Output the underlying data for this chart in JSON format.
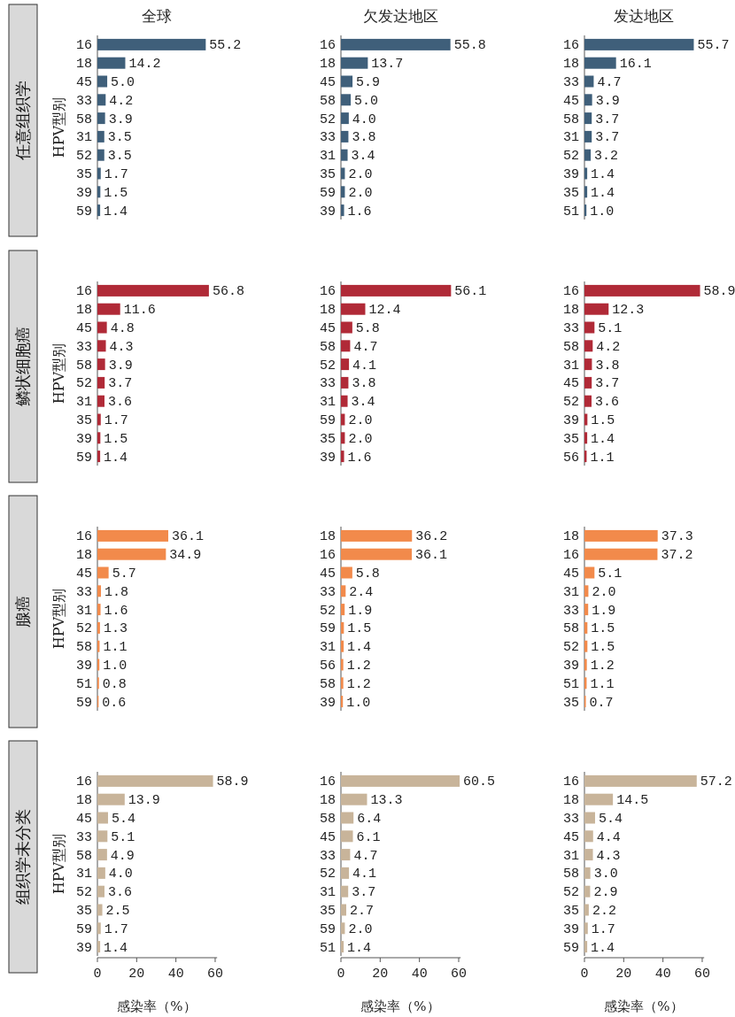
{
  "chart_data": [
    {
      "type": "bar",
      "orientation": "horizontal",
      "title": "全球",
      "subtitle": "任意组织学",
      "ylabel": "HPV型别",
      "categories": [
        "16",
        "18",
        "45",
        "33",
        "58",
        "31",
        "52",
        "35",
        "39",
        "59"
      ],
      "values": [
        55.2,
        14.2,
        5.0,
        4.2,
        3.9,
        3.5,
        3.5,
        1.7,
        1.5,
        1.4
      ],
      "value_labels": [
        "55.2",
        "14.2",
        "5.0",
        "4.2",
        "3.9",
        "3.5",
        "3.5",
        "1.7",
        "1.5",
        "1.4"
      ],
      "color": "#3f5f7a",
      "tick_labels": "y"
    },
    {
      "type": "bar",
      "orientation": "horizontal",
      "title": "欠发达地区",
      "categories": [
        "16",
        "18",
        "45",
        "58",
        "52",
        "33",
        "31",
        "35",
        "59",
        "39"
      ],
      "values": [
        55.8,
        13.7,
        5.9,
        5.0,
        4.0,
        3.8,
        3.4,
        2.0,
        2.0,
        1.6
      ],
      "value_labels": [
        "55.8",
        "13.7",
        "5.9",
        "5.0",
        "4.0",
        "3.8",
        "3.4",
        "2.0",
        "2.0",
        "1.6"
      ],
      "color": "#3f5f7a",
      "tick_labels": "y"
    },
    {
      "type": "bar",
      "orientation": "horizontal",
      "title": "发达地区",
      "categories": [
        "16",
        "18",
        "33",
        "45",
        "58",
        "31",
        "52",
        "39",
        "35",
        "51"
      ],
      "values": [
        55.7,
        16.1,
        4.7,
        3.9,
        3.7,
        3.7,
        3.2,
        1.4,
        1.4,
        1.0
      ],
      "value_labels": [
        "55.7",
        "16.1",
        "4.7",
        "3.9",
        "3.7",
        "3.7",
        "3.2",
        "1.4",
        "1.4",
        "1.0"
      ],
      "color": "#3f5f7a",
      "tick_labels": "y"
    },
    {
      "type": "bar",
      "orientation": "horizontal",
      "subtitle": "鳞状细胞癌",
      "ylabel": "HPV型别",
      "categories": [
        "16",
        "18",
        "45",
        "33",
        "58",
        "52",
        "31",
        "35",
        "39",
        "59"
      ],
      "values": [
        56.8,
        11.6,
        4.8,
        4.3,
        3.9,
        3.7,
        3.6,
        1.7,
        1.5,
        1.4
      ],
      "value_labels": [
        "56.8",
        "11.6",
        "4.8",
        "4.3",
        "3.9",
        "3.7",
        "3.6",
        "1.7",
        "1.5",
        "1.4"
      ],
      "color": "#b02a37",
      "tick_labels": "y"
    },
    {
      "type": "bar",
      "orientation": "horizontal",
      "categories": [
        "16",
        "18",
        "45",
        "58",
        "52",
        "33",
        "31",
        "59",
        "35",
        "39"
      ],
      "values": [
        56.1,
        12.4,
        5.8,
        4.7,
        4.1,
        3.8,
        3.4,
        2.0,
        2.0,
        1.6
      ],
      "value_labels": [
        "56.1",
        "12.4",
        "5.8",
        "4.7",
        "4.1",
        "3.8",
        "3.4",
        "2.0",
        "2.0",
        "1.6"
      ],
      "color": "#b02a37",
      "tick_labels": "y"
    },
    {
      "type": "bar",
      "orientation": "horizontal",
      "categories": [
        "16",
        "18",
        "33",
        "58",
        "31",
        "45",
        "52",
        "39",
        "35",
        "56"
      ],
      "values": [
        58.9,
        12.3,
        5.1,
        4.2,
        3.8,
        3.7,
        3.6,
        1.5,
        1.4,
        1.1
      ],
      "value_labels": [
        "58.9",
        "12.3",
        "5.1",
        "4.2",
        "3.8",
        "3.7",
        "3.6",
        "1.5",
        "1.4",
        "1.1"
      ],
      "color": "#b02a37",
      "tick_labels": "y"
    },
    {
      "type": "bar",
      "orientation": "horizontal",
      "subtitle": "腺癌",
      "ylabel": "HPV型别",
      "categories": [
        "16",
        "18",
        "45",
        "33",
        "31",
        "52",
        "58",
        "39",
        "51",
        "59"
      ],
      "values": [
        36.1,
        34.9,
        5.7,
        1.8,
        1.6,
        1.3,
        1.1,
        1.0,
        0.8,
        0.6
      ],
      "value_labels": [
        "36.1",
        "34.9",
        "5.7",
        "1.8",
        "1.6",
        "1.3",
        "1.1",
        "1.0",
        "0.8",
        "0.6"
      ],
      "color": "#f28a4b",
      "tick_labels": "y"
    },
    {
      "type": "bar",
      "orientation": "horizontal",
      "categories": [
        "18",
        "16",
        "45",
        "33",
        "52",
        "59",
        "31",
        "56",
        "58",
        "39"
      ],
      "values": [
        36.2,
        36.1,
        5.8,
        2.4,
        1.9,
        1.5,
        1.4,
        1.2,
        1.2,
        1.0
      ],
      "value_labels": [
        "36.2",
        "36.1",
        "5.8",
        "2.4",
        "1.9",
        "1.5",
        "1.4",
        "1.2",
        "1.2",
        "1.0"
      ],
      "color": "#f28a4b",
      "tick_labels": "y"
    },
    {
      "type": "bar",
      "orientation": "horizontal",
      "categories": [
        "18",
        "16",
        "45",
        "31",
        "33",
        "58",
        "52",
        "39",
        "51",
        "35"
      ],
      "values": [
        37.3,
        37.2,
        5.1,
        2.0,
        1.9,
        1.5,
        1.5,
        1.2,
        1.1,
        0.7
      ],
      "value_labels": [
        "37.3",
        "37.2",
        "5.1",
        "2.0",
        "1.9",
        "1.5",
        "1.5",
        "1.2",
        "1.1",
        "0.7"
      ],
      "color": "#f28a4b",
      "tick_labels": "y"
    },
    {
      "type": "bar",
      "orientation": "horizontal",
      "subtitle": "组织学未分类",
      "ylabel": "HPV型别",
      "xlabel": "感染率（%）",
      "categories": [
        "16",
        "18",
        "45",
        "33",
        "58",
        "31",
        "52",
        "35",
        "59",
        "39"
      ],
      "values": [
        58.9,
        13.9,
        5.4,
        5.1,
        4.9,
        4.0,
        3.6,
        2.5,
        1.7,
        1.4
      ],
      "value_labels": [
        "58.9",
        "13.9",
        "5.4",
        "5.1",
        "4.9",
        "4.0",
        "3.6",
        "2.5",
        "1.7",
        "1.4"
      ],
      "color": "#c8b49a",
      "xlim": [
        0,
        61
      ],
      "xticks": [
        0,
        20,
        40,
        60
      ]
    },
    {
      "type": "bar",
      "orientation": "horizontal",
      "xlabel": "感染率（%）",
      "categories": [
        "16",
        "18",
        "58",
        "45",
        "33",
        "52",
        "31",
        "35",
        "59",
        "51"
      ],
      "values": [
        60.5,
        13.3,
        6.4,
        6.1,
        4.7,
        4.1,
        3.7,
        2.7,
        2.0,
        1.4
      ],
      "value_labels": [
        "60.5",
        "13.3",
        "6.4",
        "6.1",
        "4.7",
        "4.1",
        "3.7",
        "2.7",
        "2.0",
        "1.4"
      ],
      "color": "#c8b49a",
      "xlim": [
        0,
        61
      ],
      "xticks": [
        0,
        20,
        40,
        60
      ]
    },
    {
      "type": "bar",
      "orientation": "horizontal",
      "xlabel": "感染率（%）",
      "categories": [
        "16",
        "18",
        "33",
        "45",
        "31",
        "58",
        "52",
        "35",
        "39",
        "59"
      ],
      "values": [
        57.2,
        14.5,
        5.4,
        4.4,
        4.3,
        3.0,
        2.9,
        2.2,
        1.7,
        1.4
      ],
      "value_labels": [
        "57.2",
        "14.5",
        "5.4",
        "4.4",
        "4.3",
        "3.0",
        "2.9",
        "2.2",
        "1.7",
        "1.4"
      ],
      "color": "#c8b49a",
      "xlim": [
        0,
        61
      ],
      "xticks": [
        0,
        20,
        40,
        60
      ]
    }
  ]
}
